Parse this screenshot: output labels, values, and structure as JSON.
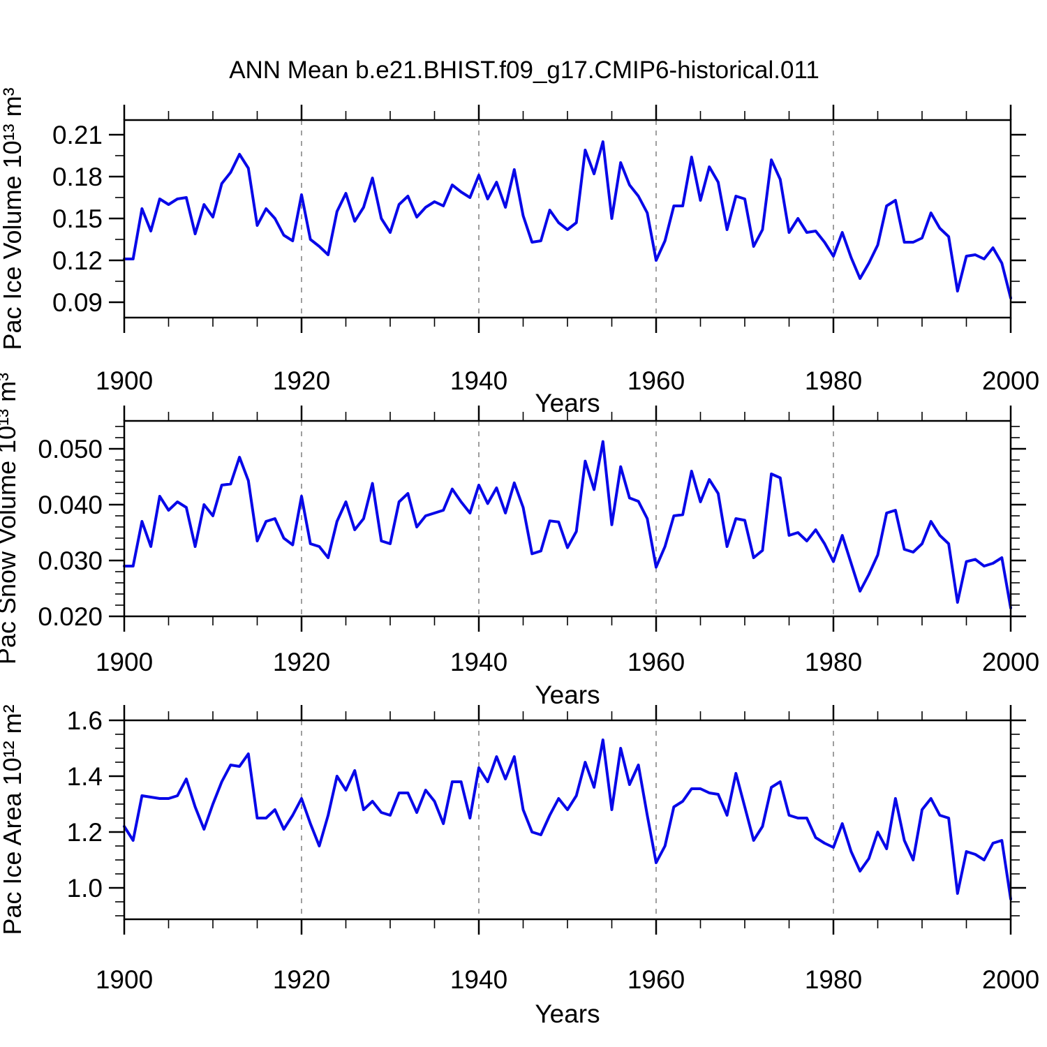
{
  "title": "ANN Mean b.e21.BHIST.f09_g17.CMIP6-historical.011",
  "colors": {
    "line": "#0808E8",
    "frame": "#000000",
    "gridline": "#7F7F7F",
    "background": "#FFFFFF"
  },
  "x_axis": {
    "label": "Years",
    "start": 1900,
    "end": 2000,
    "major_tick_years": [
      1900,
      1920,
      1940,
      1960,
      1980,
      2000
    ],
    "major_tick_labels": [
      "1900",
      "1920",
      "1940",
      "1960",
      "1980",
      "2000"
    ],
    "minor_tick_interval": 5,
    "dashed_gridline_years": [
      1920,
      1940,
      1960,
      1980
    ]
  },
  "chart_data": [
    {
      "type": "line",
      "ylabel": "Pac Ice Volume 10¹³ m³",
      "ylim": [
        0.079,
        0.2205
      ],
      "yticks": [
        0.21,
        0.18,
        0.15,
        0.12,
        0.09
      ],
      "ytick_labels": [
        "0.21",
        "0.18",
        "0.15",
        "0.12",
        "0.09"
      ],
      "y_minor_step": 0.015,
      "x": {
        "start": 1900,
        "step": 1
      },
      "values": [
        0.121,
        0.121,
        0.157,
        0.141,
        0.164,
        0.16,
        0.164,
        0.165,
        0.139,
        0.16,
        0.151,
        0.175,
        0.183,
        0.196,
        0.186,
        0.145,
        0.157,
        0.15,
        0.138,
        0.134,
        0.167,
        0.135,
        0.13,
        0.124,
        0.155,
        0.168,
        0.148,
        0.158,
        0.179,
        0.15,
        0.14,
        0.16,
        0.166,
        0.151,
        0.158,
        0.162,
        0.159,
        0.174,
        0.169,
        0.165,
        0.181,
        0.164,
        0.176,
        0.158,
        0.185,
        0.152,
        0.133,
        0.134,
        0.156,
        0.147,
        0.142,
        0.147,
        0.199,
        0.182,
        0.205,
        0.15,
        0.19,
        0.174,
        0.166,
        0.154,
        0.12,
        0.134,
        0.159,
        0.159,
        0.194,
        0.163,
        0.187,
        0.176,
        0.142,
        0.166,
        0.164,
        0.13,
        0.142,
        0.192,
        0.178,
        0.14,
        0.15,
        0.14,
        0.141,
        0.133,
        0.123,
        0.14,
        0.122,
        0.107,
        0.118,
        0.131,
        0.159,
        0.163,
        0.133,
        0.133,
        0.136,
        0.154,
        0.143,
        0.137,
        0.098,
        0.123,
        0.124,
        0.121,
        0.129,
        0.118,
        0.093
      ]
    },
    {
      "type": "line",
      "ylabel": "Pac Snow Volume 10¹³ m³",
      "ylim": [
        0.02,
        0.055
      ],
      "yticks": [
        0.05,
        0.04,
        0.03,
        0.02
      ],
      "ytick_labels": [
        "0.050",
        "0.040",
        "0.030",
        "0.020"
      ],
      "y_minor_step": 0.002,
      "x": {
        "start": 1900,
        "step": 1
      },
      "values": [
        0.029,
        0.029,
        0.037,
        0.0325,
        0.0415,
        0.039,
        0.0405,
        0.0395,
        0.0325,
        0.04,
        0.038,
        0.0435,
        0.0437,
        0.0485,
        0.0443,
        0.0335,
        0.037,
        0.0375,
        0.034,
        0.0328,
        0.0415,
        0.033,
        0.0325,
        0.0305,
        0.037,
        0.0405,
        0.0355,
        0.0375,
        0.0438,
        0.0335,
        0.033,
        0.0405,
        0.042,
        0.036,
        0.038,
        0.0385,
        0.039,
        0.0428,
        0.0405,
        0.0385,
        0.0435,
        0.0402,
        0.043,
        0.0385,
        0.0439,
        0.0395,
        0.0312,
        0.0317,
        0.0371,
        0.0369,
        0.0323,
        0.0352,
        0.0478,
        0.0427,
        0.0513,
        0.0364,
        0.0468,
        0.0412,
        0.0406,
        0.0375,
        0.0288,
        0.0325,
        0.038,
        0.0382,
        0.046,
        0.0405,
        0.0445,
        0.042,
        0.0325,
        0.0375,
        0.0372,
        0.0305,
        0.0318,
        0.0455,
        0.0448,
        0.0345,
        0.035,
        0.0335,
        0.0355,
        0.033,
        0.0298,
        0.0345,
        0.0295,
        0.0245,
        0.0275,
        0.031,
        0.0385,
        0.039,
        0.032,
        0.0315,
        0.033,
        0.037,
        0.0345,
        0.033,
        0.0225,
        0.0298,
        0.0302,
        0.029,
        0.0295,
        0.0305,
        0.0215
      ]
    },
    {
      "type": "line",
      "ylabel": "Pac Ice Area 10¹² m²",
      "ylim": [
        0.8875,
        1.6
      ],
      "yticks": [
        1.6,
        1.4,
        1.2,
        1.0
      ],
      "ytick_labels": [
        "1.6",
        "1.4",
        "1.2",
        "1.0"
      ],
      "y_minor_step": 0.05,
      "x": {
        "start": 1900,
        "step": 1
      },
      "values": [
        1.22,
        1.17,
        1.33,
        1.325,
        1.32,
        1.32,
        1.33,
        1.39,
        1.29,
        1.21,
        1.3,
        1.38,
        1.44,
        1.435,
        1.48,
        1.25,
        1.25,
        1.28,
        1.21,
        1.26,
        1.32,
        1.23,
        1.15,
        1.26,
        1.4,
        1.35,
        1.42,
        1.28,
        1.31,
        1.27,
        1.26,
        1.34,
        1.34,
        1.27,
        1.35,
        1.31,
        1.23,
        1.38,
        1.38,
        1.25,
        1.43,
        1.38,
        1.47,
        1.39,
        1.47,
        1.28,
        1.2,
        1.19,
        1.26,
        1.32,
        1.28,
        1.33,
        1.45,
        1.36,
        1.53,
        1.28,
        1.5,
        1.37,
        1.44,
        1.26,
        1.09,
        1.15,
        1.29,
        1.31,
        1.355,
        1.355,
        1.34,
        1.335,
        1.26,
        1.41,
        1.29,
        1.17,
        1.22,
        1.36,
        1.38,
        1.26,
        1.25,
        1.25,
        1.18,
        1.16,
        1.145,
        1.23,
        1.13,
        1.06,
        1.105,
        1.2,
        1.14,
        1.32,
        1.17,
        1.1,
        1.28,
        1.32,
        1.26,
        1.25,
        0.98,
        1.13,
        1.12,
        1.1,
        1.16,
        1.17,
        0.96
      ]
    }
  ]
}
